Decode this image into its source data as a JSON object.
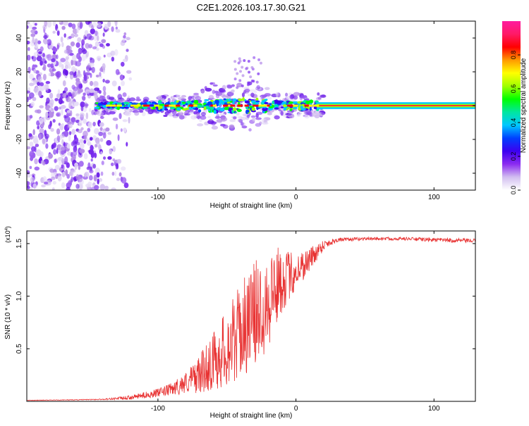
{
  "title": "C2E1.2026.103.17.30.G21",
  "chart_data": [
    {
      "type": "heatmap",
      "title": "C2E1.2026.103.17.30.G21",
      "xlabel": "Height of straight line (km)",
      "ylabel": "Frequency (Hz)",
      "xlim": [
        -195,
        130
      ],
      "ylim": [
        -50,
        50
      ],
      "xticks": [
        -100,
        0,
        100
      ],
      "yticks": [
        -40,
        -20,
        0,
        20,
        40
      ],
      "colorbar": {
        "label": "Normalized spectral amplitude",
        "range": [
          0,
          1
        ],
        "ticks": [
          "0.0",
          "0.2",
          "0.4",
          "0.6",
          "0.8"
        ],
        "colors": [
          "#ffffff",
          "#d2bef0",
          "#8c2cf0",
          "#3c00f0",
          "#0040ff",
          "#00c8ff",
          "#00e6a0",
          "#00ff00",
          "#a0ff00",
          "#ffff00",
          "#ff9900",
          "#ff0000",
          "#ff1a66",
          "#ff1a9e"
        ]
      },
      "features": {
        "noise_region_x": [
          -195,
          -140
        ],
        "signal_band_start_x": -145,
        "signal_band_center_hz": 0,
        "tone_region_x": [
          15,
          130
        ],
        "scatter_spur": {
          "x": [
            -45,
            -25
          ],
          "y": [
            10,
            30
          ]
        }
      }
    },
    {
      "type": "line",
      "xlabel": "Height of straight line (km)",
      "ylabel": "SNR (10 * v/v)",
      "ylabel_multiplier": "(x10⁴)",
      "multiplier_base": "(x10",
      "multiplier_exp": "4",
      "multiplier_close": ")",
      "xlim": [
        -195,
        130
      ],
      "ylim": [
        0,
        1.62
      ],
      "xticks": [
        -100,
        0,
        100
      ],
      "yticks": [
        0.5,
        1.0,
        1.5
      ],
      "ytick_labels": [
        "0.5",
        "1.0",
        "1.5"
      ],
      "series": [
        {
          "name": "SNR",
          "color": "#e83232",
          "envelope_x": [
            -195,
            -160,
            -140,
            -120,
            -100,
            -90,
            -80,
            -70,
            -60,
            -50,
            -40,
            -30,
            -20,
            -15,
            -10,
            0,
            10,
            20,
            30,
            50,
            80,
            100,
            130
          ],
          "envelope_y": [
            0.01,
            0.015,
            0.02,
            0.04,
            0.09,
            0.13,
            0.2,
            0.3,
            0.45,
            0.6,
            0.78,
            0.95,
            1.1,
            1.18,
            1.22,
            1.28,
            1.38,
            1.5,
            1.54,
            1.55,
            1.55,
            1.54,
            1.53
          ],
          "noise_scale": [
            0.002,
            0.003,
            0.005,
            0.02,
            0.04,
            0.06,
            0.1,
            0.18,
            0.28,
            0.38,
            0.45,
            0.5,
            0.5,
            0.4,
            0.3,
            0.18,
            0.12,
            0.05,
            0.02,
            0.015,
            0.015,
            0.02,
            0.02
          ]
        }
      ]
    }
  ]
}
